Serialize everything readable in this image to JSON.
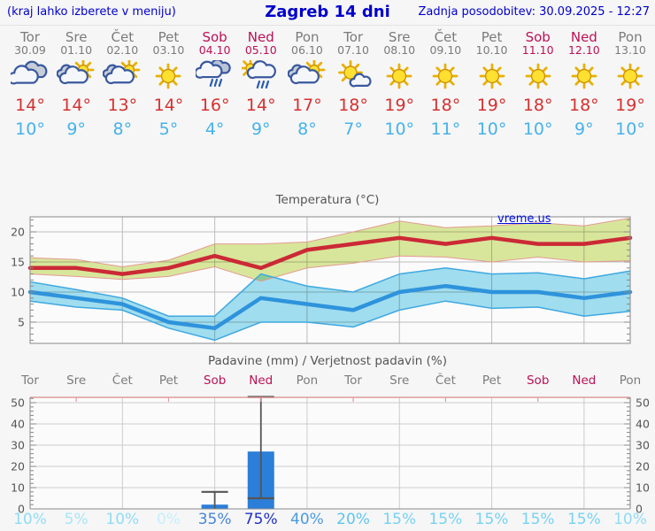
{
  "header": {
    "left_note": "(kraj lahko izberete v meniju)",
    "title": "Zagreb 14 dni",
    "updated": "Zadnja posodobitev: 30.09.2025 - 12:27"
  },
  "colors": {
    "header_blue": "#0000cc",
    "weekday_gray": "#7b7b7b",
    "weekend_crimson": "#bb1155",
    "tmax_red": "#d53131",
    "tmin_blue": "#47b2e9",
    "chart_max_line": "#cb2936",
    "chart_max_band_fill": "#dcea9e",
    "chart_max_band_edge": "#e39a92",
    "chart_min_line": "#2e93dc",
    "chart_min_band_fill": "#a3e1f2",
    "chart_min_band_edge": "#3fa8e0",
    "bar_blue": "#2b7fd9",
    "whisker_gray": "#555555",
    "grid_gray": "#bdbdbd",
    "axis_gray": "#8a8a8a"
  },
  "days": [
    {
      "name": "Tor",
      "date": "30.09",
      "weekend": false,
      "icon": "cloudy",
      "tmax": "14°",
      "tmin": "10°"
    },
    {
      "name": "Sre",
      "date": "01.10",
      "weekend": false,
      "icon": "partly-cloudy",
      "tmax": "14°",
      "tmin": "9°"
    },
    {
      "name": "Čet",
      "date": "02.10",
      "weekend": false,
      "icon": "partly-cloudy",
      "tmax": "13°",
      "tmin": "8°"
    },
    {
      "name": "Pet",
      "date": "03.10",
      "weekend": false,
      "icon": "sunny",
      "tmax": "14°",
      "tmin": "5°"
    },
    {
      "name": "Sob",
      "date": "04.10",
      "weekend": true,
      "icon": "rain",
      "tmax": "16°",
      "tmin": "4°"
    },
    {
      "name": "Ned",
      "date": "05.10",
      "weekend": true,
      "icon": "sun-rain",
      "tmax": "14°",
      "tmin": "9°"
    },
    {
      "name": "Pon",
      "date": "06.10",
      "weekend": false,
      "icon": "partly-cloudy",
      "tmax": "17°",
      "tmin": "8°"
    },
    {
      "name": "Tor",
      "date": "07.10",
      "weekend": false,
      "icon": "mostly-sunny",
      "tmax": "18°",
      "tmin": "7°"
    },
    {
      "name": "Sre",
      "date": "08.10",
      "weekend": false,
      "icon": "sunny",
      "tmax": "19°",
      "tmin": "10°"
    },
    {
      "name": "Čet",
      "date": "09.10",
      "weekend": false,
      "icon": "sunny",
      "tmax": "18°",
      "tmin": "11°"
    },
    {
      "name": "Pet",
      "date": "10.10",
      "weekend": false,
      "icon": "sunny",
      "tmax": "19°",
      "tmin": "10°"
    },
    {
      "name": "Sob",
      "date": "11.10",
      "weekend": true,
      "icon": "sunny",
      "tmax": "18°",
      "tmin": "10°"
    },
    {
      "name": "Ned",
      "date": "12.10",
      "weekend": true,
      "icon": "sunny",
      "tmax": "18°",
      "tmin": "9°"
    },
    {
      "name": "Pon",
      "date": "13.10",
      "weekend": false,
      "icon": "sunny",
      "tmax": "19°",
      "tmin": "10°"
    }
  ],
  "chart_data": [
    {
      "type": "line",
      "title": "Temperatura (°C)",
      "watermark": "vreme.us",
      "categories": [
        "30.09",
        "01.10",
        "02.10",
        "03.10",
        "04.10",
        "05.10",
        "06.10",
        "07.10",
        "08.10",
        "09.10",
        "10.10",
        "11.10",
        "12.10",
        "13.10"
      ],
      "ylim": [
        1.5,
        22.5
      ],
      "yticks": [
        5,
        10,
        15,
        20
      ],
      "grid_v_at": [
        2,
        4,
        6,
        8,
        10,
        12
      ],
      "legend": "none",
      "series": [
        {
          "name": "max-temperature",
          "color": "#cb2936",
          "values": [
            14,
            14,
            13,
            14,
            16,
            14,
            17,
            18,
            19,
            18,
            19,
            18,
            18,
            19
          ]
        },
        {
          "name": "min-temperature",
          "color": "#2e93dc",
          "values": [
            10,
            9,
            8,
            5,
            4,
            9,
            8,
            7,
            10,
            11,
            10,
            10,
            9,
            10
          ]
        }
      ],
      "bands": [
        {
          "name": "max-range",
          "fill": "#dcea9e",
          "edge": "#e39a92",
          "upper": [
            15.7,
            15.4,
            14.2,
            15.3,
            18,
            18,
            18.3,
            20,
            21.8,
            20.7,
            21,
            21.5,
            21,
            22.3
          ],
          "lower": [
            13,
            12.6,
            12.1,
            12.6,
            14.2,
            11.8,
            14,
            14.8,
            16,
            15.8,
            15,
            15.8,
            15,
            15.2
          ]
        },
        {
          "name": "min-range",
          "fill": "#a3e1f2",
          "edge": "#3fa8e0",
          "upper": [
            11.7,
            10.4,
            9,
            6,
            6,
            13,
            11,
            10,
            13,
            14,
            13,
            13.2,
            12.2,
            13.5
          ],
          "lower": [
            8.5,
            7.5,
            7,
            4,
            2,
            5,
            5,
            4.2,
            7,
            8.5,
            7.3,
            7.5,
            6,
            6.8
          ]
        }
      ]
    },
    {
      "type": "bar",
      "title": "Padavine (mm) / Verjetnost padavin (%)",
      "categories": [
        "Tor",
        "Sre",
        "Čet",
        "Pet",
        "Sob",
        "Ned",
        "Pon",
        "Tor",
        "Sre",
        "Čet",
        "Pet",
        "Sob",
        "Ned",
        "Pon"
      ],
      "weekend_flags": [
        false,
        false,
        false,
        false,
        true,
        true,
        false,
        false,
        false,
        false,
        false,
        true,
        true,
        false
      ],
      "values_mm": [
        0,
        0,
        0,
        0,
        2,
        27,
        0,
        0,
        0,
        0,
        0,
        0,
        0,
        0
      ],
      "whiskers": [
        {
          "day_index": 4,
          "low": 0,
          "high": 8
        },
        {
          "day_index": 5,
          "low": 5,
          "high": 53
        }
      ],
      "probabilities": [
        "10%",
        "5%",
        "10%",
        "0%",
        "35%",
        "75%",
        "40%",
        "20%",
        "15%",
        "15%",
        "15%",
        "15%",
        "15%",
        "10%"
      ],
      "probability_colors": [
        "#8fdcf5",
        "#a6e6f8",
        "#8fdcf5",
        "#c4f0fb",
        "#4585d9",
        "#2130ca",
        "#4a9be0",
        "#60c3ec",
        "#76d2f2",
        "#76d2f2",
        "#76d2f2",
        "#76d2f2",
        "#76d2f2",
        "#8fdcf5"
      ],
      "bar_color": "#2b7fd9",
      "ylim": [
        0,
        52.5
      ],
      "yticks": [
        0,
        10,
        20,
        30,
        40,
        50
      ],
      "grid_v_at": [
        2,
        4,
        6,
        8,
        10,
        12
      ]
    }
  ]
}
